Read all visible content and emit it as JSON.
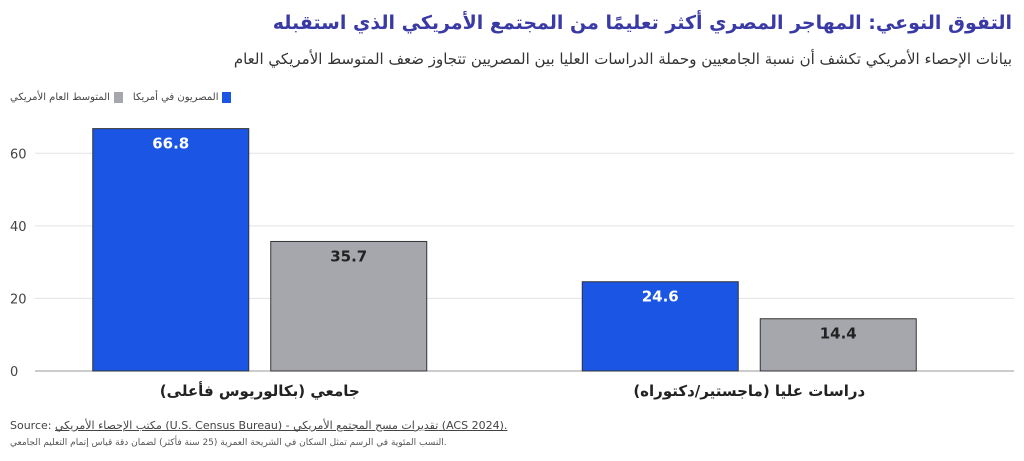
{
  "title": "التفوق النوعي: المهاجر المصري أكثر تعليمًا من المجتمع الأمريكي الذي استقبله",
  "subtitle": "بيانات الإحصاء الأمريكي تكشف أن نسبة الجامعيين وحملة الدراسات العليا بين المصريين تتجاوز ضعف المتوسط الأمريكي العام",
  "legend": [
    {
      "label": "المصريون في أمريكا",
      "color": "#1a55e3"
    },
    {
      "label": "المتوسط العام الأمريكي",
      "color": "#a5a7ad"
    }
  ],
  "footer": {
    "source_prefix": "Source:",
    "source_text": "مكتب الإحصاء الأمريكي (U.S. Census Bureau) - تقديرات مسح المجتمع الأمريكي (ACS 2024).",
    "note": "النسب المئوية في الرسم تمثل السكان في الشريحة العمرية (25 سنة فأكثر) لضمان دقة قياس إتمام التعليم الجامعي."
  },
  "chart_data": {
    "type": "bar",
    "categories": [
      "جامعي (بكالوريوس فأعلى)",
      "دراسات عليا (ماجستير/دكتوراه)"
    ],
    "series": [
      {
        "name": "المصريون في أمريكا",
        "values": [
          66.8,
          24.6
        ],
        "color": "#1a55e3"
      },
      {
        "name": "المتوسط العام الأمريكي",
        "values": [
          35.7,
          14.4
        ],
        "color": "#a5a7ad"
      }
    ],
    "yticks": [
      "0",
      "20",
      "40",
      "60"
    ],
    "ylim": [
      0,
      70
    ],
    "grid": true,
    "data_labels": true,
    "legend_position": "top-left"
  }
}
